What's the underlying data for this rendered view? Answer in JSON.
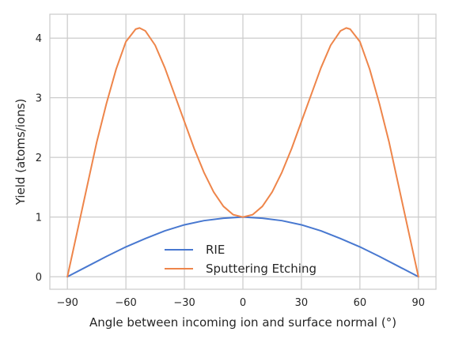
{
  "chart_data": {
    "type": "line",
    "xlabel": "Angle between incoming ion and surface normal (°)",
    "ylabel": "Yield (atoms/ions)",
    "xlim": [
      -99,
      99
    ],
    "ylim": [
      -0.21,
      4.4
    ],
    "x_ticks": [
      -90,
      -60,
      -30,
      0,
      30,
      60,
      90
    ],
    "x_tick_labels": [
      "−90",
      "−60",
      "−30",
      "0",
      "30",
      "60",
      "90"
    ],
    "y_ticks": [
      0,
      1,
      2,
      3,
      4
    ],
    "y_tick_labels": [
      "0",
      "1",
      "2",
      "3",
      "4"
    ],
    "grid": true,
    "legend_position": "lower-center",
    "series": [
      {
        "name": "RIE",
        "color": "#4878d0",
        "x": [
          -90,
          -80,
          -70,
          -60,
          -50,
          -40,
          -30,
          -20,
          -10,
          0,
          10,
          20,
          30,
          40,
          50,
          60,
          70,
          80,
          90
        ],
        "y": [
          0.0,
          0.17,
          0.34,
          0.5,
          0.64,
          0.77,
          0.87,
          0.94,
          0.98,
          1.0,
          0.98,
          0.94,
          0.87,
          0.77,
          0.64,
          0.5,
          0.34,
          0.17,
          0.0
        ]
      },
      {
        "name": "Sputtering Etching",
        "color": "#ee854a",
        "x": [
          -90,
          -85,
          -80,
          -75,
          -70,
          -65,
          -60,
          -55,
          -53,
          -50,
          -45,
          -40,
          -35,
          -30,
          -25,
          -20,
          -15,
          -10,
          -5,
          0,
          5,
          10,
          15,
          20,
          25,
          30,
          35,
          40,
          45,
          50,
          53,
          55,
          60,
          65,
          70,
          75,
          80,
          85,
          90
        ],
        "y": [
          0.0,
          0.75,
          1.5,
          2.25,
          2.9,
          3.48,
          3.94,
          4.15,
          4.17,
          4.12,
          3.88,
          3.5,
          3.05,
          2.6,
          2.15,
          1.75,
          1.42,
          1.18,
          1.04,
          1.0,
          1.04,
          1.18,
          1.42,
          1.75,
          2.15,
          2.6,
          3.05,
          3.5,
          3.88,
          4.12,
          4.17,
          4.15,
          3.94,
          3.48,
          2.9,
          2.25,
          1.5,
          0.75,
          0.0
        ]
      }
    ]
  }
}
